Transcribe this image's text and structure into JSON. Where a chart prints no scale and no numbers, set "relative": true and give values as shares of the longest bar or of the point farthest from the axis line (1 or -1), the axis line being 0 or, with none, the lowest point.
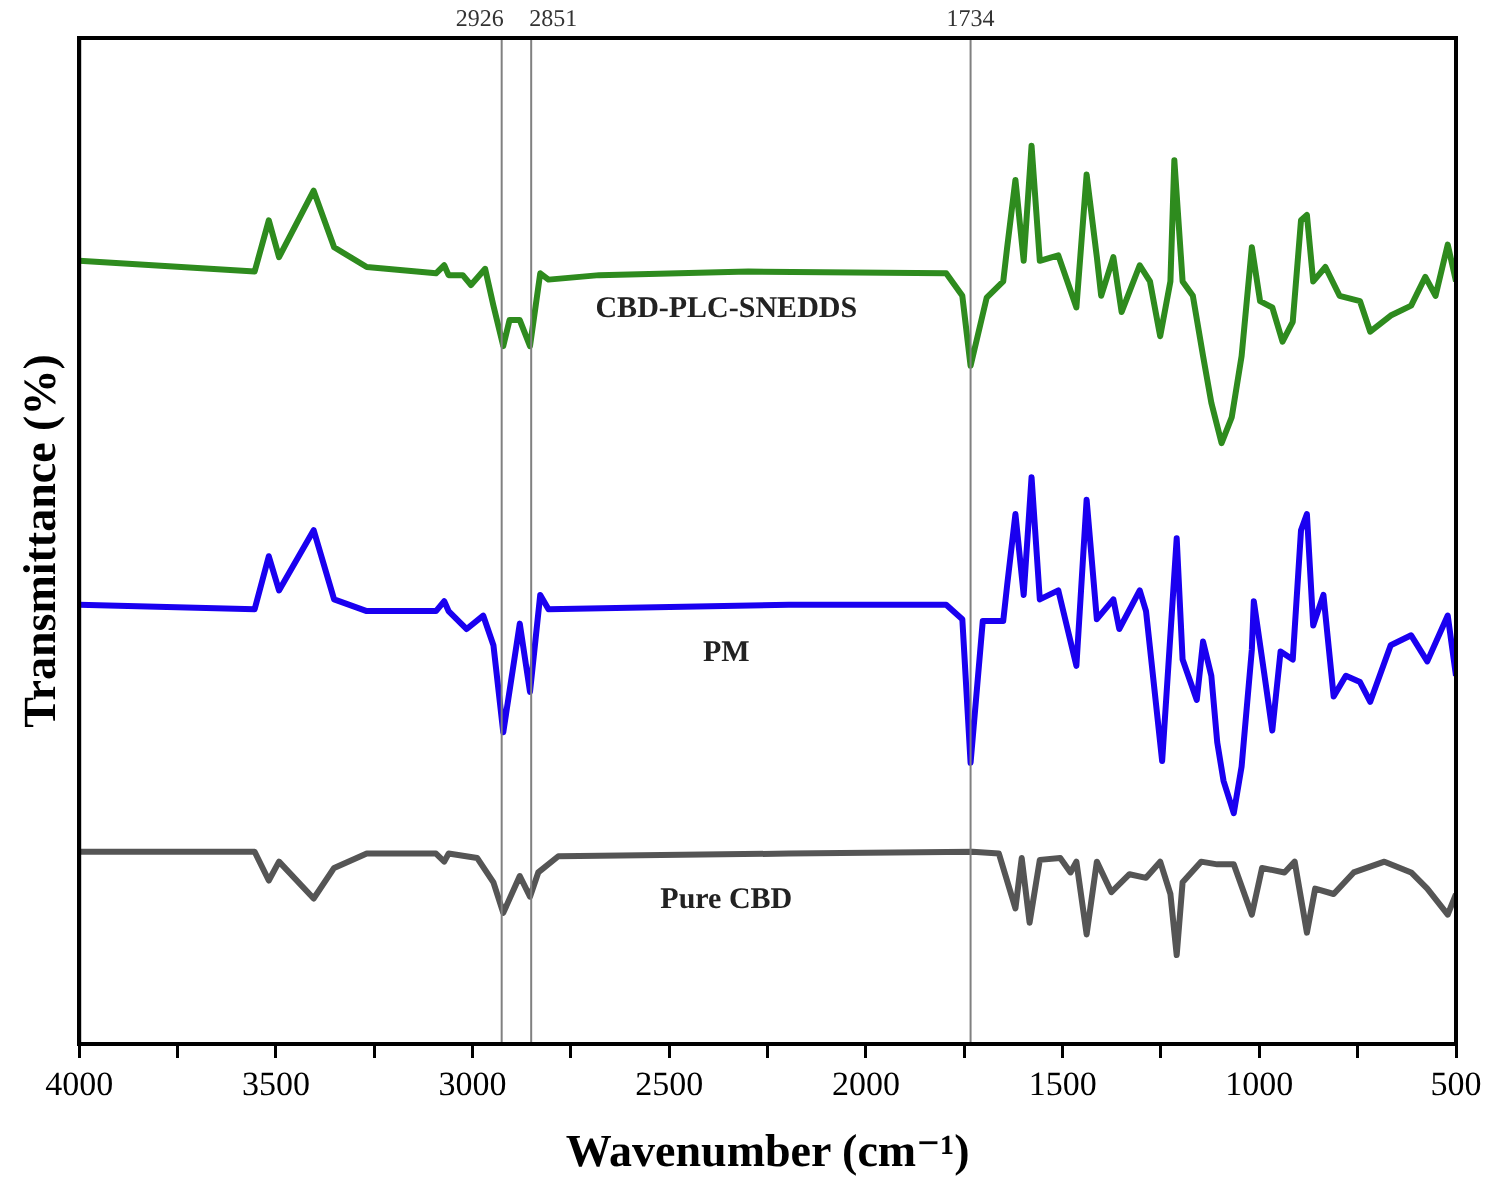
{
  "chart_data": {
    "type": "line",
    "relative": true,
    "xlabel": "Wavenumber (cm⁻¹)",
    "ylabel": "Transmittance (%)",
    "xlim": [
      4000,
      500
    ],
    "xticks": [
      4000,
      {
        "value": 3750,
        "label": null
      },
      3500,
      {
        "value": 3250,
        "label": null
      },
      3000,
      {
        "value": 2750,
        "label": null
      },
      2500,
      {
        "value": 2250,
        "label": null
      },
      2000,
      {
        "value": 1750,
        "label": null
      },
      1500,
      {
        "value": 1250,
        "label": null
      },
      1000,
      {
        "value": 750,
        "label": null
      },
      500
    ],
    "ref_lines": [
      {
        "axis": "x",
        "value": 2926,
        "label": "2926",
        "color": "#808080"
      },
      {
        "axis": "x",
        "value": 2851,
        "label": "2851",
        "color": "#808080"
      },
      {
        "axis": "x",
        "value": 1734,
        "label": "1734",
        "color": "#808080"
      }
    ],
    "series": [
      {
        "name": "CBD-PLC-SNEDDS",
        "color": "#2e8b1e",
        "x": [
          4000,
          3554,
          3518,
          3492,
          3404,
          3352,
          3269,
          3093,
          3072,
          3061,
          3025,
          3004,
          2968,
          2947,
          2922,
          2906,
          2880,
          2854,
          2828,
          2807,
          2678,
          2299,
          1796,
          1755,
          1734,
          1693,
          1651,
          1641,
          1620,
          1599,
          1579,
          1558,
          1511,
          1465,
          1439,
          1413,
          1402,
          1371,
          1350,
          1304,
          1278,
          1252,
          1226,
          1216,
          1195,
          1169,
          1143,
          1122,
          1096,
          1070,
          1045,
          1019,
          998,
          967,
          941,
          915,
          894,
          879,
          863,
          832,
          796,
          744,
          718,
          666,
          614,
          578,
          552,
          521,
          500
        ],
        "values": [
          0.872,
          0.86,
          0.917,
          0.876,
          0.95,
          0.887,
          0.865,
          0.858,
          0.867,
          0.856,
          0.856,
          0.845,
          0.863,
          0.822,
          0.777,
          0.806,
          0.806,
          0.777,
          0.858,
          0.851,
          0.856,
          0.86,
          0.858,
          0.833,
          0.755,
          0.831,
          0.849,
          0.887,
          0.962,
          0.872,
          1.0,
          0.872,
          0.878,
          0.82,
          0.968,
          0.876,
          0.833,
          0.876,
          0.815,
          0.867,
          0.849,
          0.788,
          0.849,
          0.984,
          0.849,
          0.833,
          0.766,
          0.714,
          0.669,
          0.698,
          0.766,
          0.887,
          0.827,
          0.82,
          0.782,
          0.804,
          0.917,
          0.923,
          0.849,
          0.865,
          0.833,
          0.827,
          0.793,
          0.811,
          0.822,
          0.854,
          0.833,
          0.89,
          0.849
        ]
      },
      {
        "name": "PM",
        "color": "#1a00f0",
        "x": [
          4000,
          3554,
          3518,
          3492,
          3404,
          3352,
          3269,
          3093,
          3072,
          3061,
          3015,
          2973,
          2947,
          2922,
          2880,
          2854,
          2828,
          2807,
          2196,
          1796,
          1755,
          1734,
          1703,
          1651,
          1641,
          1620,
          1599,
          1579,
          1558,
          1511,
          1465,
          1439,
          1413,
          1371,
          1356,
          1304,
          1288,
          1247,
          1210,
          1195,
          1159,
          1143,
          1122,
          1107,
          1091,
          1065,
          1045,
          1019,
          1014,
          988,
          967,
          946,
          915,
          894,
          879,
          863,
          837,
          811,
          780,
          744,
          718,
          666,
          614,
          573,
          521,
          500
        ],
        "values": [
          0.489,
          0.484,
          0.543,
          0.505,
          0.572,
          0.495,
          0.482,
          0.482,
          0.493,
          0.482,
          0.462,
          0.477,
          0.444,
          0.347,
          0.468,
          0.392,
          0.5,
          0.484,
          0.489,
          0.489,
          0.473,
          0.313,
          0.471,
          0.471,
          0.511,
          0.59,
          0.5,
          0.631,
          0.495,
          0.505,
          0.421,
          0.606,
          0.473,
          0.495,
          0.462,
          0.505,
          0.482,
          0.315,
          0.563,
          0.428,
          0.383,
          0.448,
          0.41,
          0.336,
          0.293,
          0.257,
          0.309,
          0.439,
          0.493,
          0.414,
          0.349,
          0.437,
          0.428,
          0.572,
          0.59,
          0.466,
          0.5,
          0.387,
          0.41,
          0.403,
          0.381,
          0.444,
          0.455,
          0.426,
          0.477,
          0.41
        ]
      },
      {
        "name": "Pure CBD",
        "color": "#555555",
        "x": [
          4000,
          3554,
          3518,
          3492,
          3404,
          3352,
          3269,
          3093,
          3072,
          3061,
          2988,
          2947,
          2922,
          2880,
          2854,
          2833,
          2782,
          2196,
          1729,
          1662,
          1620,
          1604,
          1584,
          1558,
          1506,
          1480,
          1465,
          1439,
          1413,
          1376,
          1330,
          1288,
          1252,
          1226,
          1210,
          1195,
          1148,
          1107,
          1065,
          1019,
          993,
          936,
          910,
          879,
          858,
          811,
          760,
          682,
          614,
          573,
          521,
          500
        ],
        "values": [
          0.214,
          0.214,
          0.182,
          0.203,
          0.162,
          0.196,
          0.212,
          0.212,
          0.203,
          0.212,
          0.207,
          0.18,
          0.146,
          0.187,
          0.164,
          0.191,
          0.209,
          0.212,
          0.214,
          0.212,
          0.151,
          0.207,
          0.135,
          0.205,
          0.207,
          0.191,
          0.203,
          0.122,
          0.203,
          0.169,
          0.189,
          0.185,
          0.203,
          0.167,
          0.099,
          0.18,
          0.203,
          0.2,
          0.2,
          0.144,
          0.196,
          0.191,
          0.203,
          0.124,
          0.173,
          0.167,
          0.191,
          0.203,
          0.191,
          0.173,
          0.144,
          0.167
        ]
      }
    ]
  }
}
